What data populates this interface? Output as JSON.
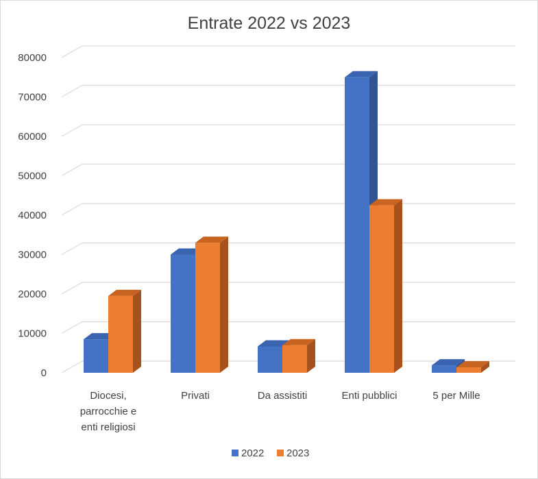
{
  "chart_data": {
    "type": "bar",
    "title": "Entrate 2022 vs 2023",
    "categories": [
      [
        "Diocesi,",
        "parrocchie e",
        "enti religiosi"
      ],
      [
        "Privati"
      ],
      [
        "Da assistiti"
      ],
      [
        "Enti pubblici"
      ],
      [
        "5 per Mille"
      ]
    ],
    "series": [
      {
        "name": "2022",
        "values": [
          8500,
          30000,
          6700,
          75000,
          1900
        ],
        "color": "#4472c4",
        "side_color": "#2f5597",
        "top_color": "#3a64b0"
      },
      {
        "name": "2023",
        "values": [
          19500,
          33000,
          7000,
          42500,
          1400
        ],
        "color": "#ed7d31",
        "side_color": "#a7521c",
        "top_color": "#c8641f"
      }
    ],
    "yticks": [
      "0",
      "10000",
      "20000",
      "30000",
      "40000",
      "50000",
      "60000",
      "70000",
      "80000"
    ],
    "ylim": [
      0,
      80000
    ],
    "grid": true,
    "legend": "bottom",
    "chart_style": "3d-clustered-column"
  }
}
